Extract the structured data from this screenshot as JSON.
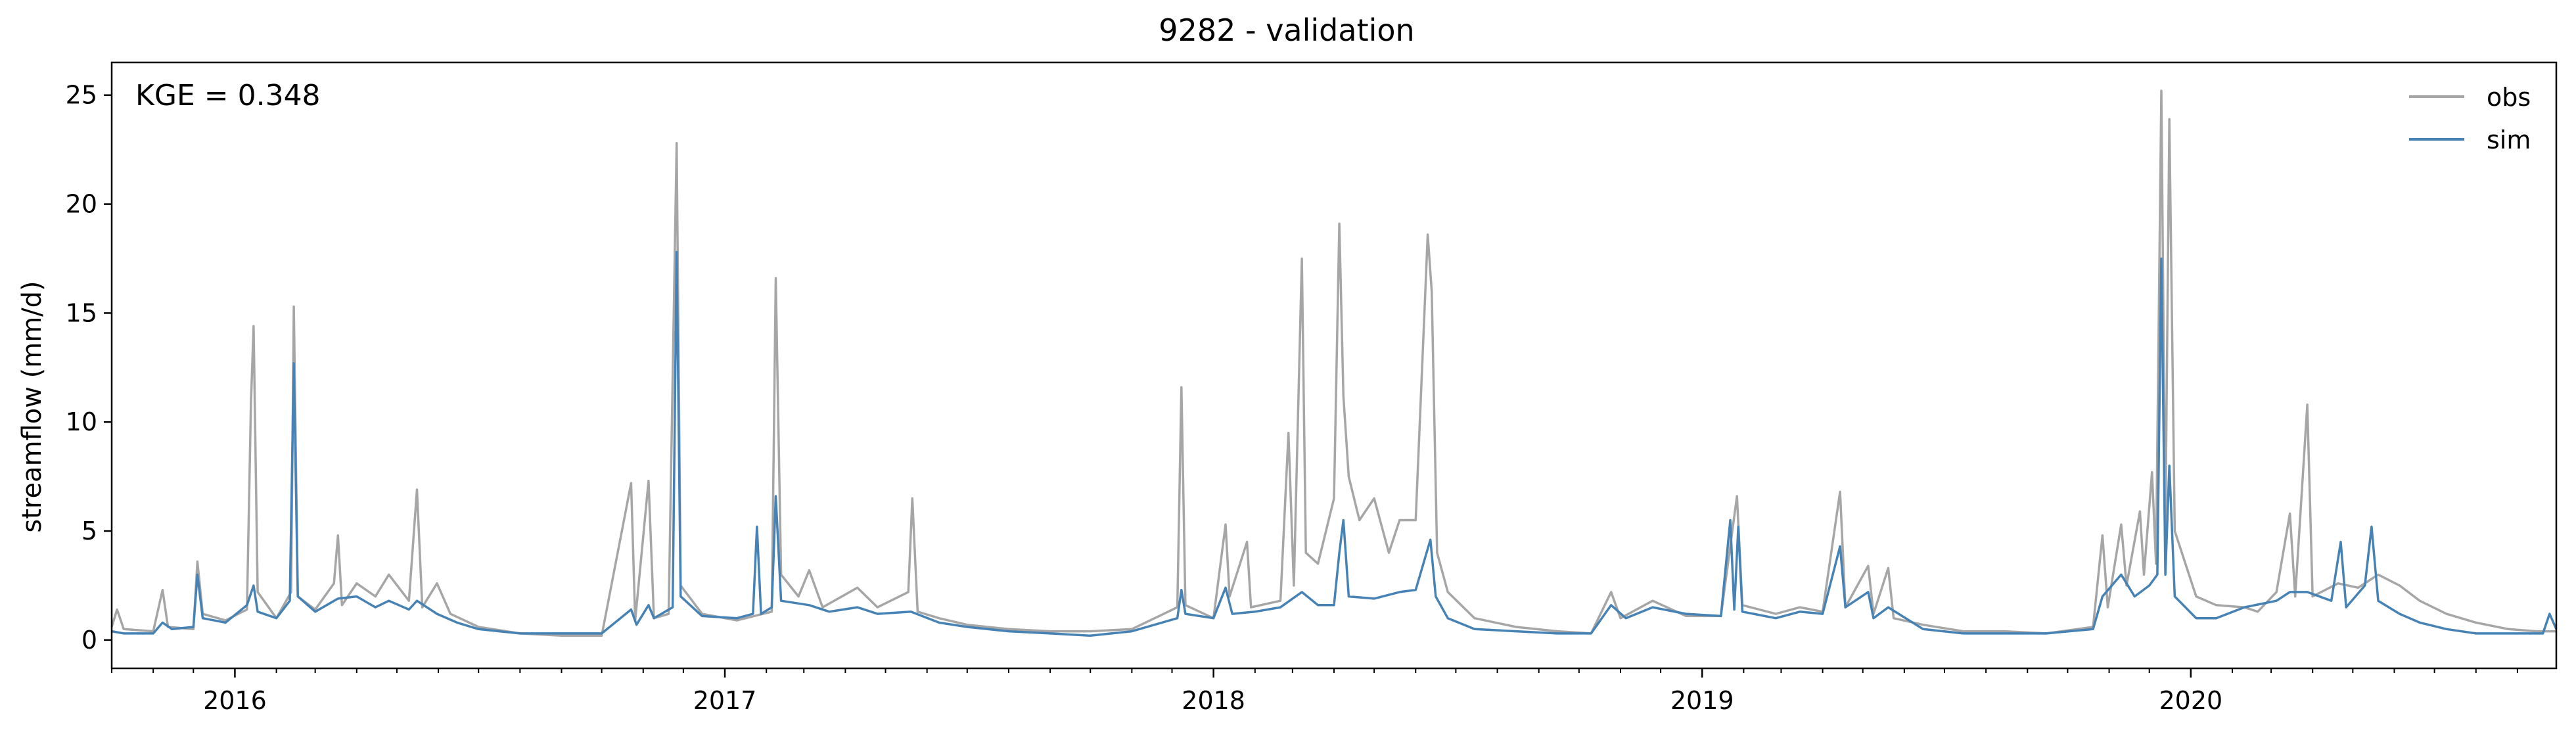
{
  "chart_data": {
    "type": "line",
    "title": "9282 - validation",
    "xlabel": "",
    "ylabel": "streamflow (mm/d)",
    "annotation": "KGE = 0.348",
    "xlim": [
      "2015-10-01",
      "2020-09-30"
    ],
    "ylim": [
      -1.3,
      26.5
    ],
    "y_ticks": [
      0,
      5,
      10,
      15,
      20,
      25
    ],
    "x_ticks": [
      {
        "date": "2016-01-01",
        "label": "2016"
      },
      {
        "date": "2017-01-01",
        "label": "2017"
      },
      {
        "date": "2018-01-01",
        "label": "2018"
      },
      {
        "date": "2019-01-01",
        "label": "2019"
      },
      {
        "date": "2020-01-01",
        "label": "2020"
      }
    ],
    "grid": false,
    "legend_position": "top-right",
    "series": [
      {
        "name": "obs",
        "color": "#a6a6a6",
        "points": [
          [
            "2015-10-01",
            0.6
          ],
          [
            "2015-10-05",
            1.4
          ],
          [
            "2015-10-10",
            0.5
          ],
          [
            "2015-11-01",
            0.4
          ],
          [
            "2015-11-08",
            2.3
          ],
          [
            "2015-11-12",
            0.6
          ],
          [
            "2015-12-01",
            0.5
          ],
          [
            "2015-12-04",
            3.6
          ],
          [
            "2015-12-08",
            1.2
          ],
          [
            "2015-12-25",
            0.9
          ],
          [
            "2016-01-10",
            1.4
          ],
          [
            "2016-01-13",
            10.9
          ],
          [
            "2016-01-15",
            14.4
          ],
          [
            "2016-01-18",
            2.2
          ],
          [
            "2016-02-01",
            1.0
          ],
          [
            "2016-02-12",
            2.2
          ],
          [
            "2016-02-14",
            15.3
          ],
          [
            "2016-02-17",
            2.0
          ],
          [
            "2016-03-01",
            1.4
          ],
          [
            "2016-03-15",
            2.6
          ],
          [
            "2016-03-18",
            4.8
          ],
          [
            "2016-03-21",
            1.6
          ],
          [
            "2016-04-01",
            2.6
          ],
          [
            "2016-04-15",
            2.0
          ],
          [
            "2016-04-25",
            3.0
          ],
          [
            "2016-05-10",
            1.8
          ],
          [
            "2016-05-16",
            6.9
          ],
          [
            "2016-05-20",
            1.5
          ],
          [
            "2016-05-31",
            2.6
          ],
          [
            "2016-06-10",
            1.2
          ],
          [
            "2016-07-01",
            0.6
          ],
          [
            "2016-08-01",
            0.3
          ],
          [
            "2016-09-01",
            0.2
          ],
          [
            "2016-10-01",
            0.2
          ],
          [
            "2016-10-23",
            7.2
          ],
          [
            "2016-10-26",
            0.9
          ],
          [
            "2016-11-05",
            7.3
          ],
          [
            "2016-11-09",
            1.0
          ],
          [
            "2016-11-20",
            1.2
          ],
          [
            "2016-11-26",
            22.8
          ],
          [
            "2016-11-29",
            2.5
          ],
          [
            "2016-12-15",
            1.2
          ],
          [
            "2017-01-10",
            0.9
          ],
          [
            "2017-02-05",
            1.3
          ],
          [
            "2017-02-08",
            16.6
          ],
          [
            "2017-02-12",
            3.0
          ],
          [
            "2017-02-25",
            2.0
          ],
          [
            "2017-03-05",
            3.2
          ],
          [
            "2017-03-15",
            1.5
          ],
          [
            "2017-04-10",
            2.4
          ],
          [
            "2017-04-25",
            1.5
          ],
          [
            "2017-05-18",
            2.2
          ],
          [
            "2017-05-21",
            6.5
          ],
          [
            "2017-05-25",
            1.3
          ],
          [
            "2017-06-10",
            1.0
          ],
          [
            "2017-07-01",
            0.7
          ],
          [
            "2017-08-01",
            0.5
          ],
          [
            "2017-09-01",
            0.4
          ],
          [
            "2017-10-01",
            0.4
          ],
          [
            "2017-11-01",
            0.5
          ],
          [
            "2017-12-05",
            1.5
          ],
          [
            "2017-12-08",
            11.6
          ],
          [
            "2017-12-11",
            1.6
          ],
          [
            "2018-01-01",
            1.0
          ],
          [
            "2018-01-10",
            5.3
          ],
          [
            "2018-01-13",
            2.0
          ],
          [
            "2018-01-26",
            4.5
          ],
          [
            "2018-01-29",
            1.5
          ],
          [
            "2018-02-20",
            1.8
          ],
          [
            "2018-02-26",
            9.5
          ],
          [
            "2018-03-02",
            2.5
          ],
          [
            "2018-03-08",
            17.5
          ],
          [
            "2018-03-11",
            4.0
          ],
          [
            "2018-03-20",
            3.5
          ],
          [
            "2018-04-01",
            6.5
          ],
          [
            "2018-04-05",
            19.1
          ],
          [
            "2018-04-08",
            11.2
          ],
          [
            "2018-04-12",
            7.5
          ],
          [
            "2018-04-20",
            5.5
          ],
          [
            "2018-05-01",
            6.5
          ],
          [
            "2018-05-12",
            4.0
          ],
          [
            "2018-05-20",
            5.5
          ],
          [
            "2018-06-01",
            5.5
          ],
          [
            "2018-06-10",
            18.6
          ],
          [
            "2018-06-13",
            16.0
          ],
          [
            "2018-06-17",
            4.0
          ],
          [
            "2018-06-25",
            2.2
          ],
          [
            "2018-07-15",
            1.0
          ],
          [
            "2018-08-15",
            0.6
          ],
          [
            "2018-09-15",
            0.4
          ],
          [
            "2018-10-10",
            0.3
          ],
          [
            "2018-10-25",
            2.2
          ],
          [
            "2018-11-01",
            1.0
          ],
          [
            "2018-11-25",
            1.8
          ],
          [
            "2018-12-20",
            1.1
          ],
          [
            "2019-01-15",
            1.1
          ],
          [
            "2019-01-27",
            6.6
          ],
          [
            "2019-01-31",
            1.6
          ],
          [
            "2019-02-25",
            1.2
          ],
          [
            "2019-03-15",
            1.5
          ],
          [
            "2019-04-01",
            1.3
          ],
          [
            "2019-04-14",
            6.8
          ],
          [
            "2019-04-18",
            1.5
          ],
          [
            "2019-05-05",
            3.4
          ],
          [
            "2019-05-09",
            1.2
          ],
          [
            "2019-05-20",
            3.3
          ],
          [
            "2019-05-24",
            1.0
          ],
          [
            "2019-06-15",
            0.7
          ],
          [
            "2019-07-15",
            0.4
          ],
          [
            "2019-08-15",
            0.4
          ],
          [
            "2019-09-15",
            0.3
          ],
          [
            "2019-10-20",
            0.6
          ],
          [
            "2019-10-27",
            4.8
          ],
          [
            "2019-10-31",
            1.5
          ],
          [
            "2019-11-10",
            5.3
          ],
          [
            "2019-11-14",
            2.5
          ],
          [
            "2019-11-24",
            5.9
          ],
          [
            "2019-11-27",
            3.0
          ],
          [
            "2019-12-03",
            7.7
          ],
          [
            "2019-12-06",
            3.5
          ],
          [
            "2019-12-10",
            25.2
          ],
          [
            "2019-12-13",
            5.0
          ],
          [
            "2019-12-16",
            23.9
          ],
          [
            "2019-12-20",
            5.0
          ],
          [
            "2020-01-05",
            2.0
          ],
          [
            "2020-01-20",
            1.6
          ],
          [
            "2020-02-10",
            1.5
          ],
          [
            "2020-02-20",
            1.3
          ],
          [
            "2020-03-05",
            2.2
          ],
          [
            "2020-03-15",
            5.8
          ],
          [
            "2020-03-19",
            2.0
          ],
          [
            "2020-03-28",
            10.8
          ],
          [
            "2020-04-01",
            2.0
          ],
          [
            "2020-04-20",
            2.6
          ],
          [
            "2020-05-05",
            2.4
          ],
          [
            "2020-05-20",
            3.0
          ],
          [
            "2020-06-05",
            2.5
          ],
          [
            "2020-06-20",
            1.8
          ],
          [
            "2020-07-10",
            1.2
          ],
          [
            "2020-08-01",
            0.8
          ],
          [
            "2020-08-25",
            0.5
          ],
          [
            "2020-09-15",
            0.4
          ],
          [
            "2020-09-30",
            0.4
          ]
        ]
      },
      {
        "name": "sim",
        "color": "#4682b4",
        "points": [
          [
            "2015-10-01",
            0.4
          ],
          [
            "2015-10-10",
            0.3
          ],
          [
            "2015-11-01",
            0.3
          ],
          [
            "2015-11-08",
            0.8
          ],
          [
            "2015-11-15",
            0.5
          ],
          [
            "2015-12-01",
            0.6
          ],
          [
            "2015-12-04",
            3.0
          ],
          [
            "2015-12-08",
            1.0
          ],
          [
            "2015-12-25",
            0.8
          ],
          [
            "2016-01-10",
            1.6
          ],
          [
            "2016-01-15",
            2.5
          ],
          [
            "2016-01-18",
            1.3
          ],
          [
            "2016-02-01",
            1.0
          ],
          [
            "2016-02-11",
            1.8
          ],
          [
            "2016-02-14",
            12.7
          ],
          [
            "2016-02-17",
            2.0
          ],
          [
            "2016-03-01",
            1.3
          ],
          [
            "2016-03-18",
            1.9
          ],
          [
            "2016-04-01",
            2.0
          ],
          [
            "2016-04-15",
            1.5
          ],
          [
            "2016-04-25",
            1.8
          ],
          [
            "2016-05-10",
            1.4
          ],
          [
            "2016-05-16",
            1.8
          ],
          [
            "2016-05-31",
            1.2
          ],
          [
            "2016-06-15",
            0.8
          ],
          [
            "2016-07-01",
            0.5
          ],
          [
            "2016-08-01",
            0.3
          ],
          [
            "2016-09-01",
            0.3
          ],
          [
            "2016-10-01",
            0.3
          ],
          [
            "2016-10-23",
            1.4
          ],
          [
            "2016-10-27",
            0.7
          ],
          [
            "2016-11-05",
            1.6
          ],
          [
            "2016-11-09",
            1.0
          ],
          [
            "2016-11-23",
            1.5
          ],
          [
            "2016-11-26",
            17.8
          ],
          [
            "2016-11-29",
            2.0
          ],
          [
            "2016-12-15",
            1.1
          ],
          [
            "2017-01-10",
            1.0
          ],
          [
            "2017-01-22",
            1.2
          ],
          [
            "2017-01-25",
            5.2
          ],
          [
            "2017-01-28",
            1.2
          ],
          [
            "2017-02-05",
            1.5
          ],
          [
            "2017-02-08",
            6.6
          ],
          [
            "2017-02-12",
            1.8
          ],
          [
            "2017-03-05",
            1.6
          ],
          [
            "2017-03-20",
            1.3
          ],
          [
            "2017-04-10",
            1.5
          ],
          [
            "2017-04-25",
            1.2
          ],
          [
            "2017-05-20",
            1.3
          ],
          [
            "2017-06-10",
            0.8
          ],
          [
            "2017-07-01",
            0.6
          ],
          [
            "2017-08-01",
            0.4
          ],
          [
            "2017-09-01",
            0.3
          ],
          [
            "2017-10-01",
            0.2
          ],
          [
            "2017-11-01",
            0.4
          ],
          [
            "2017-12-05",
            1.0
          ],
          [
            "2017-12-08",
            2.3
          ],
          [
            "2017-12-11",
            1.2
          ],
          [
            "2018-01-01",
            1.0
          ],
          [
            "2018-01-10",
            2.4
          ],
          [
            "2018-01-15",
            1.2
          ],
          [
            "2018-02-01",
            1.3
          ],
          [
            "2018-02-20",
            1.5
          ],
          [
            "2018-03-08",
            2.2
          ],
          [
            "2018-03-20",
            1.6
          ],
          [
            "2018-04-01",
            1.6
          ],
          [
            "2018-04-05",
            4.0
          ],
          [
            "2018-04-08",
            5.5
          ],
          [
            "2018-04-12",
            2.0
          ],
          [
            "2018-05-01",
            1.9
          ],
          [
            "2018-05-20",
            2.2
          ],
          [
            "2018-06-01",
            2.3
          ],
          [
            "2018-06-12",
            4.6
          ],
          [
            "2018-06-16",
            2.0
          ],
          [
            "2018-06-25",
            1.0
          ],
          [
            "2018-07-15",
            0.5
          ],
          [
            "2018-08-15",
            0.4
          ],
          [
            "2018-09-15",
            0.3
          ],
          [
            "2018-10-10",
            0.3
          ],
          [
            "2018-10-25",
            1.6
          ],
          [
            "2018-11-05",
            1.0
          ],
          [
            "2018-11-25",
            1.5
          ],
          [
            "2018-12-20",
            1.2
          ],
          [
            "2019-01-15",
            1.1
          ],
          [
            "2019-01-22",
            5.5
          ],
          [
            "2019-01-25",
            1.4
          ],
          [
            "2019-01-28",
            5.2
          ],
          [
            "2019-01-31",
            1.3
          ],
          [
            "2019-02-25",
            1.0
          ],
          [
            "2019-03-15",
            1.3
          ],
          [
            "2019-04-01",
            1.2
          ],
          [
            "2019-04-14",
            4.3
          ],
          [
            "2019-04-18",
            1.5
          ],
          [
            "2019-05-05",
            2.2
          ],
          [
            "2019-05-09",
            1.0
          ],
          [
            "2019-05-20",
            1.5
          ],
          [
            "2019-06-15",
            0.5
          ],
          [
            "2019-07-15",
            0.3
          ],
          [
            "2019-08-15",
            0.3
          ],
          [
            "2019-09-15",
            0.3
          ],
          [
            "2019-10-20",
            0.5
          ],
          [
            "2019-10-27",
            2.0
          ],
          [
            "2019-11-10",
            3.0
          ],
          [
            "2019-11-20",
            2.0
          ],
          [
            "2019-12-01",
            2.5
          ],
          [
            "2019-12-07",
            3.0
          ],
          [
            "2019-12-10",
            17.5
          ],
          [
            "2019-12-13",
            3.0
          ],
          [
            "2019-12-16",
            8.0
          ],
          [
            "2019-12-20",
            2.0
          ],
          [
            "2020-01-05",
            1.0
          ],
          [
            "2020-01-20",
            1.0
          ],
          [
            "2020-02-10",
            1.5
          ],
          [
            "2020-03-05",
            1.8
          ],
          [
            "2020-03-15",
            2.2
          ],
          [
            "2020-03-28",
            2.2
          ],
          [
            "2020-04-15",
            1.8
          ],
          [
            "2020-04-22",
            4.5
          ],
          [
            "2020-04-26",
            1.5
          ],
          [
            "2020-05-10",
            2.5
          ],
          [
            "2020-05-15",
            5.2
          ],
          [
            "2020-05-20",
            1.8
          ],
          [
            "2020-06-05",
            1.2
          ],
          [
            "2020-06-20",
            0.8
          ],
          [
            "2020-07-10",
            0.5
          ],
          [
            "2020-08-01",
            0.3
          ],
          [
            "2020-08-25",
            0.3
          ],
          [
            "2020-09-20",
            0.3
          ],
          [
            "2020-09-25",
            1.2
          ],
          [
            "2020-09-30",
            0.5
          ]
        ]
      }
    ]
  }
}
